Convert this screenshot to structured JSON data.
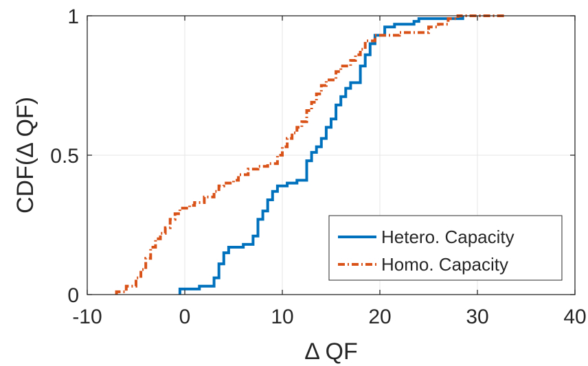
{
  "chart_data": {
    "type": "line",
    "subtype": "step-cdf",
    "title": "",
    "xlabel": "Δ QF",
    "ylabel": "CDF(Δ QF)",
    "xlim": [
      -10,
      40
    ],
    "ylim": [
      0,
      1
    ],
    "xticks": [
      -10,
      0,
      10,
      20,
      30,
      40
    ],
    "xtick_labels": [
      "-10",
      "0",
      "10",
      "20",
      "30",
      "40"
    ],
    "yticks": [
      0,
      0.5,
      1
    ],
    "ytick_labels": [
      "0",
      "0.5",
      "1"
    ],
    "grid": true,
    "legend_position": "bottom-right",
    "series": [
      {
        "name": "Hetero. Capacity",
        "color": "#0072BD",
        "line_style": "solid",
        "points": [
          [
            -0.5,
            0
          ],
          [
            -0.5,
            0.02
          ],
          [
            1.5,
            0.02
          ],
          [
            1.5,
            0.03
          ],
          [
            2.5,
            0.03
          ],
          [
            3,
            0.06
          ],
          [
            3.5,
            0.11
          ],
          [
            4,
            0.15
          ],
          [
            4.5,
            0.17
          ],
          [
            5.5,
            0.17
          ],
          [
            6,
            0.18
          ],
          [
            7,
            0.21
          ],
          [
            7.5,
            0.27
          ],
          [
            8,
            0.3
          ],
          [
            8.5,
            0.34
          ],
          [
            9,
            0.37
          ],
          [
            9.5,
            0.39
          ],
          [
            10.5,
            0.39
          ],
          [
            10.5,
            0.4
          ],
          [
            11,
            0.4
          ],
          [
            11.5,
            0.41
          ],
          [
            12,
            0.41
          ],
          [
            12.5,
            0.48
          ],
          [
            13,
            0.51
          ],
          [
            13.5,
            0.53
          ],
          [
            14,
            0.56
          ],
          [
            14.5,
            0.6
          ],
          [
            15,
            0.63
          ],
          [
            15.5,
            0.68
          ],
          [
            16,
            0.71
          ],
          [
            16.5,
            0.74
          ],
          [
            17,
            0.76
          ],
          [
            17.5,
            0.76
          ],
          [
            18,
            0.82
          ],
          [
            18.5,
            0.86
          ],
          [
            19,
            0.9
          ],
          [
            19.5,
            0.93
          ],
          [
            20.5,
            0.96
          ],
          [
            21.5,
            0.97
          ],
          [
            23.5,
            0.98
          ],
          [
            24,
            0.99
          ],
          [
            28.5,
            0.99
          ],
          [
            28.5,
            1.0
          ]
        ]
      },
      {
        "name": "Homo. Capacity",
        "color": "#D95319",
        "line_style": "dashdot",
        "points": [
          [
            -7,
            0
          ],
          [
            -7,
            0.01
          ],
          [
            -6,
            0.03
          ],
          [
            -5,
            0.06
          ],
          [
            -4.5,
            0.09
          ],
          [
            -4,
            0.13
          ],
          [
            -3.5,
            0.17
          ],
          [
            -3,
            0.2
          ],
          [
            -2.5,
            0.22
          ],
          [
            -2,
            0.24
          ],
          [
            -1.5,
            0.27
          ],
          [
            -1,
            0.29
          ],
          [
            -0.5,
            0.31
          ],
          [
            0.5,
            0.32
          ],
          [
            1,
            0.33
          ],
          [
            2,
            0.35
          ],
          [
            3,
            0.37
          ],
          [
            3.5,
            0.39
          ],
          [
            4,
            0.4
          ],
          [
            5,
            0.41
          ],
          [
            5.5,
            0.43
          ],
          [
            6.5,
            0.45
          ],
          [
            7.5,
            0.46
          ],
          [
            8.5,
            0.47
          ],
          [
            9.5,
            0.5
          ],
          [
            10,
            0.53
          ],
          [
            10.5,
            0.56
          ],
          [
            11,
            0.58
          ],
          [
            11.5,
            0.6
          ],
          [
            12,
            0.62
          ],
          [
            12.5,
            0.66
          ],
          [
            13,
            0.69
          ],
          [
            13.5,
            0.72
          ],
          [
            14,
            0.75
          ],
          [
            14.5,
            0.77
          ],
          [
            15.5,
            0.8
          ],
          [
            16,
            0.82
          ],
          [
            17,
            0.84
          ],
          [
            17.5,
            0.86
          ],
          [
            18,
            0.88
          ],
          [
            18.5,
            0.91
          ],
          [
            19.5,
            0.93
          ],
          [
            21,
            0.93
          ],
          [
            22,
            0.94
          ],
          [
            25,
            0.96
          ],
          [
            26,
            0.97
          ],
          [
            27,
            0.99
          ],
          [
            28,
            1.0
          ],
          [
            33,
            1.0
          ]
        ]
      }
    ]
  }
}
